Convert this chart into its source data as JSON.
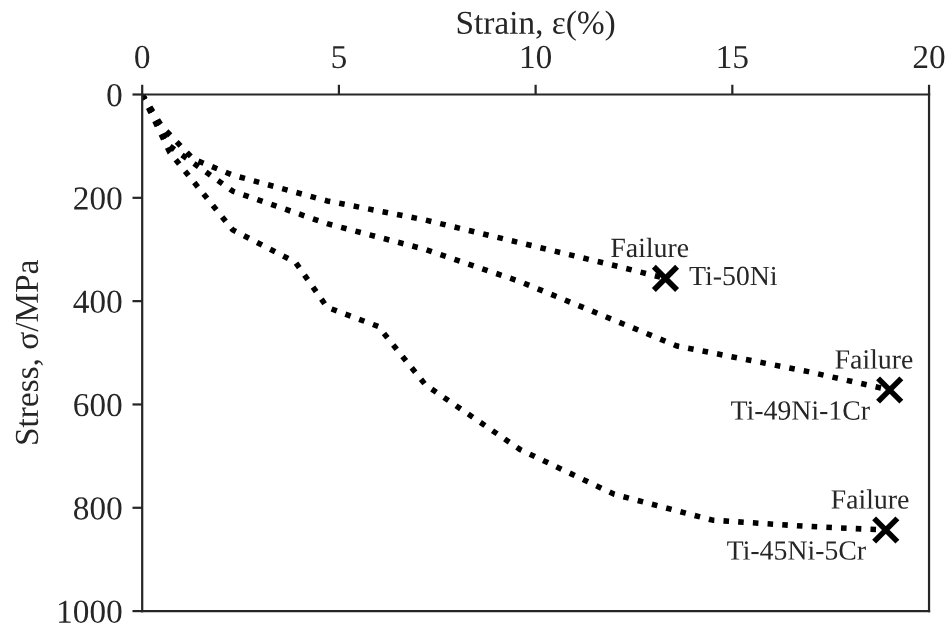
{
  "chart_data": {
    "type": "line",
    "xlabel": "Strain, ε(%)",
    "ylabel": "Stress, σ/MPa",
    "xlim": [
      0,
      20
    ],
    "xticks": [
      0,
      5,
      10,
      15,
      20
    ],
    "ylim": [
      1000,
      0
    ],
    "yticks": [
      0,
      200,
      400,
      600,
      800,
      1000
    ],
    "grid": false,
    "legend": false,
    "line_style": "dotted",
    "marker": "none",
    "series": [
      {
        "name": "Ti-50Ni",
        "color": "#000000",
        "x": [
          0,
          0.5,
          1.3,
          2.3,
          4.7,
          7.2,
          9.6,
          12.0,
          13.3
        ],
        "values": [
          0,
          62,
          125,
          156,
          206,
          243,
          287,
          331,
          356
        ]
      },
      {
        "name": "Ti-49Ni-1Cr",
        "color": "#000000",
        "x": [
          0,
          0.7,
          2.3,
          4.7,
          7.2,
          9.6,
          12.0,
          13.6,
          16.9,
          19.0
        ],
        "values": [
          0,
          100,
          187,
          250,
          300,
          362,
          437,
          487,
          536,
          572
        ]
      },
      {
        "name": "Ti-45Ni-5Cr",
        "color": "#000000",
        "x": [
          0,
          0.7,
          2.3,
          3.9,
          4.7,
          6.0,
          7.2,
          9.6,
          12.0,
          14.5,
          16.9,
          18.9
        ],
        "values": [
          0,
          112,
          262,
          325,
          412,
          449,
          562,
          687,
          774,
          824,
          836,
          843
        ]
      },
      {
        "type": "scatter",
        "marker": "cross",
        "color": "#000000",
        "x": [
          13.3,
          19.0,
          18.9
        ],
        "values": [
          356,
          572,
          843
        ]
      }
    ],
    "annotations": [
      {
        "text": "Failure",
        "x": 13.3,
        "y": 356
      },
      {
        "text": "Failure",
        "x": 19.0,
        "y": 572
      },
      {
        "text": "Failure",
        "x": 18.9,
        "y": 843
      }
    ]
  }
}
